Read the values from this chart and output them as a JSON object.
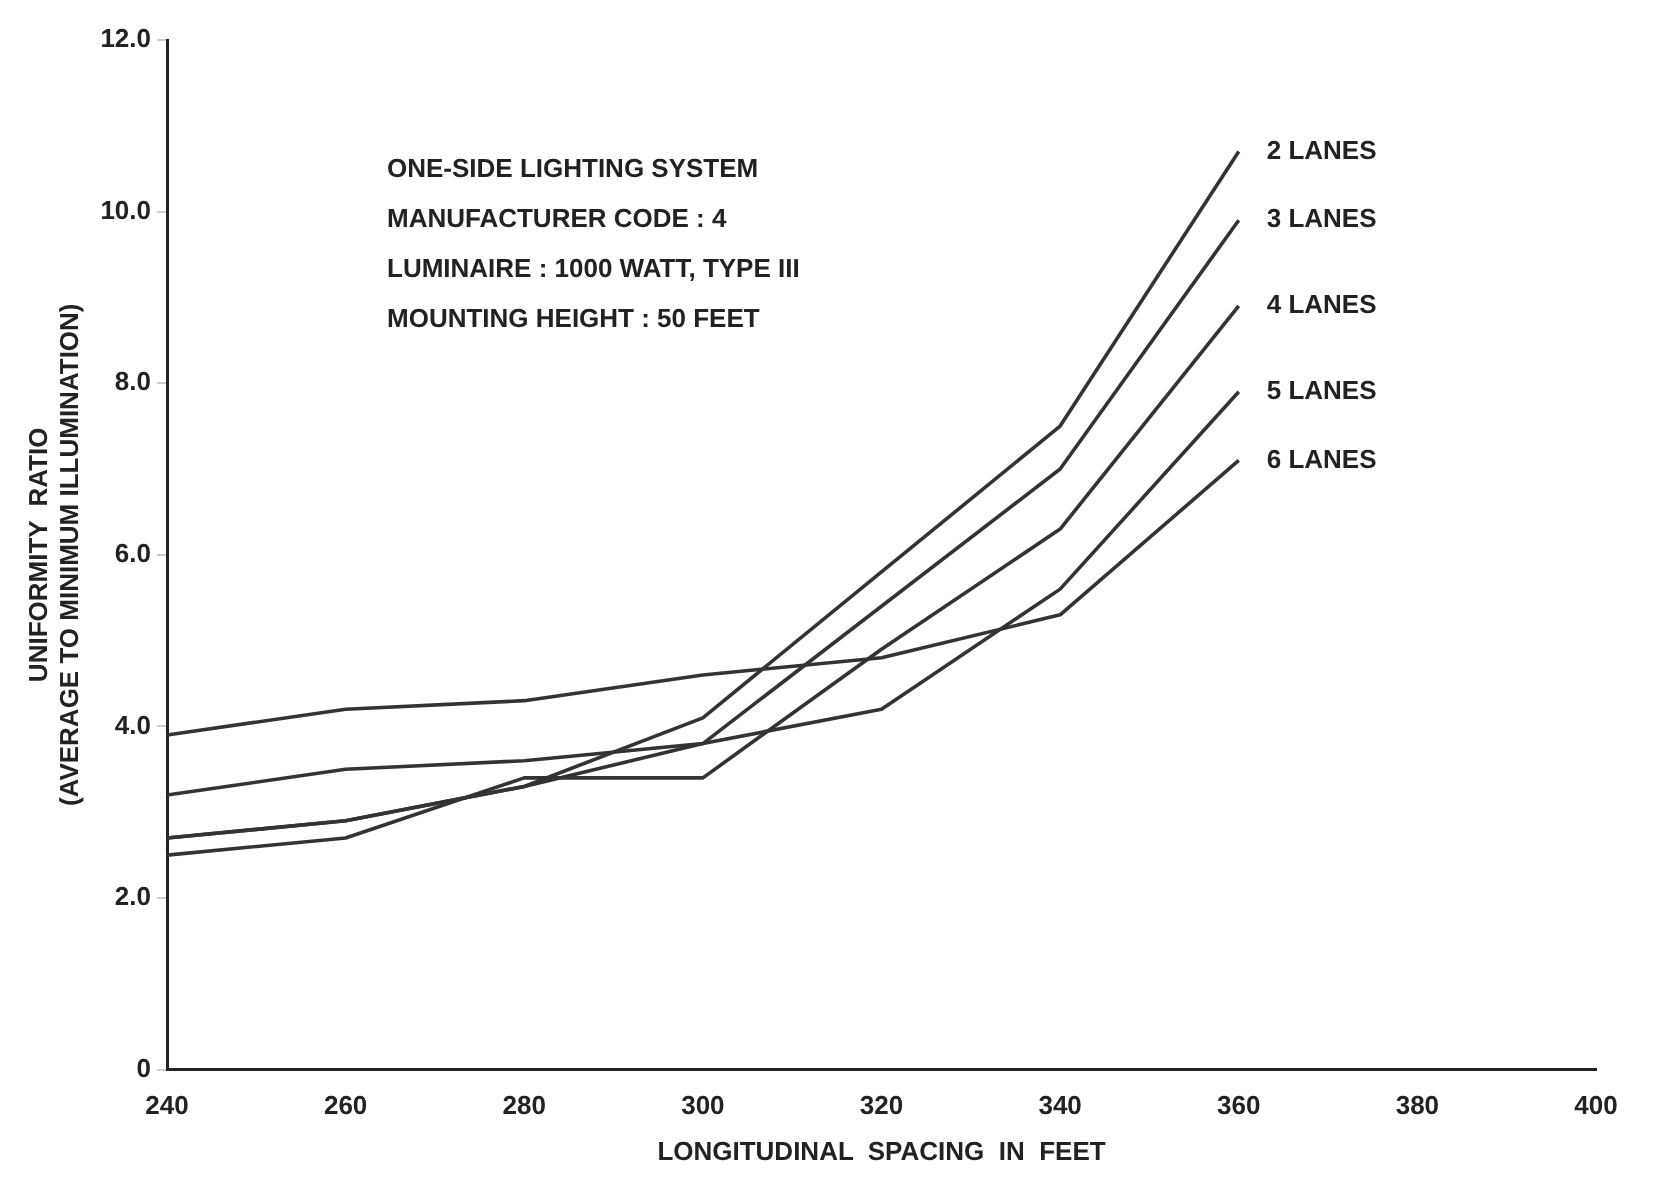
{
  "chart_data": {
    "type": "line",
    "xlabel": "LONGITUDINAL  SPACING  IN  FEET",
    "ylabel": "UNIFORMITY  RATIO\n(AVERAGE TO MINIMUM ILLUMINATION)",
    "x": [
      240,
      260,
      280,
      300,
      320,
      340,
      360
    ],
    "series": [
      {
        "name": "2 LANES",
        "color": "#333333",
        "values": [
          2.7,
          2.9,
          3.3,
          4.1,
          5.8,
          7.5,
          10.7
        ]
      },
      {
        "name": "3 LANES",
        "color": "#333333",
        "values": [
          2.7,
          2.9,
          3.3,
          3.8,
          5.4,
          7.0,
          9.9
        ]
      },
      {
        "name": "4 LANES",
        "color": "#333333",
        "values": [
          2.5,
          2.7,
          3.4,
          3.4,
          4.9,
          6.3,
          8.9
        ]
      },
      {
        "name": "5 LANES",
        "color": "#333333",
        "values": [
          3.2,
          3.5,
          3.6,
          3.8,
          4.2,
          5.6,
          7.9
        ]
      },
      {
        "name": "6 LANES",
        "color": "#333333",
        "values": [
          3.9,
          4.2,
          4.3,
          4.6,
          4.8,
          5.3,
          7.1
        ]
      }
    ],
    "xlim": [
      240,
      400
    ],
    "xticks": [
      240,
      260,
      280,
      300,
      320,
      340,
      360,
      380,
      400
    ],
    "ylim": [
      0,
      12
    ],
    "yticks": [
      {
        "value": 0,
        "label": "0"
      },
      {
        "value": 2,
        "label": "2.0"
      },
      {
        "value": 4,
        "label": "4.0"
      },
      {
        "value": 6,
        "label": "6.0"
      },
      {
        "value": 8,
        "label": "8.0"
      },
      {
        "value": 10,
        "label": "10.0"
      },
      {
        "value": 12,
        "label": "12.0"
      }
    ],
    "annotations": [
      "ONE-SIDE LIGHTING SYSTEM",
      "MANUFACTURER CODE : 4",
      "LUMINAIRE : 1000 WATT, TYPE III",
      "MOUNTING HEIGHT : 50 FEET"
    ],
    "grid": false,
    "legend": false,
    "marker": "none",
    "line_style": "solid"
  }
}
